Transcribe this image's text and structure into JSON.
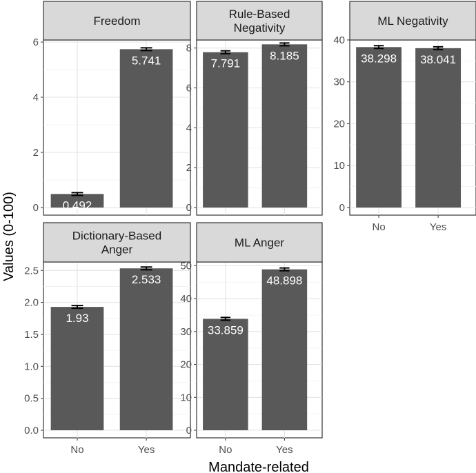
{
  "chart_data": {
    "type": "bar",
    "xlabel": "Mandate-related",
    "ylabel": "Values (0-100)",
    "categories": [
      "No",
      "Yes"
    ],
    "panels": [
      {
        "title": "Freedom",
        "values": [
          0.492,
          5.741
        ],
        "labels": [
          "0.492",
          "5.741"
        ],
        "ylim": [
          0,
          6.0
        ],
        "yticks": [
          0,
          2,
          4,
          6
        ],
        "ytick_labels": [
          "0",
          "2",
          "4",
          "6"
        ]
      },
      {
        "title": "Rule-Based\nNegativity",
        "values": [
          7.791,
          8.185
        ],
        "labels": [
          "7.791",
          "8.185"
        ],
        "ylim": [
          0,
          8.3
        ],
        "yticks": [
          0,
          2,
          4,
          6,
          8
        ],
        "ytick_labels": [
          "0",
          "2",
          "4",
          "6",
          "8"
        ]
      },
      {
        "title": "ML Negativity",
        "values": [
          38.298,
          38.041
        ],
        "labels": [
          "38.298",
          "38.041"
        ],
        "ylim": [
          0,
          39.5
        ],
        "yticks": [
          0,
          10,
          20,
          30,
          40
        ],
        "ytick_labels": [
          "0",
          "10",
          "20",
          "30",
          "40"
        ]
      },
      {
        "title": "Dictionary-Based\nAnger",
        "values": [
          1.93,
          2.533
        ],
        "labels": [
          "1.93",
          "2.533"
        ],
        "ylim": [
          0,
          2.6
        ],
        "yticks": [
          0,
          0.5,
          1.0,
          1.5,
          2.0,
          2.5
        ],
        "ytick_labels": [
          "0.0",
          "0.5",
          "1.0",
          "1.5",
          "2.0",
          "2.5"
        ]
      },
      {
        "title": "ML Anger",
        "values": [
          33.859,
          48.898
        ],
        "labels": [
          "33.859",
          "48.898"
        ],
        "ylim": [
          0,
          50.5
        ],
        "yticks": [
          0,
          10,
          20,
          30,
          40,
          50
        ],
        "ytick_labels": [
          "0",
          "10",
          "20",
          "30",
          "40",
          "50"
        ]
      }
    ],
    "grid": true,
    "legend": "none"
  }
}
